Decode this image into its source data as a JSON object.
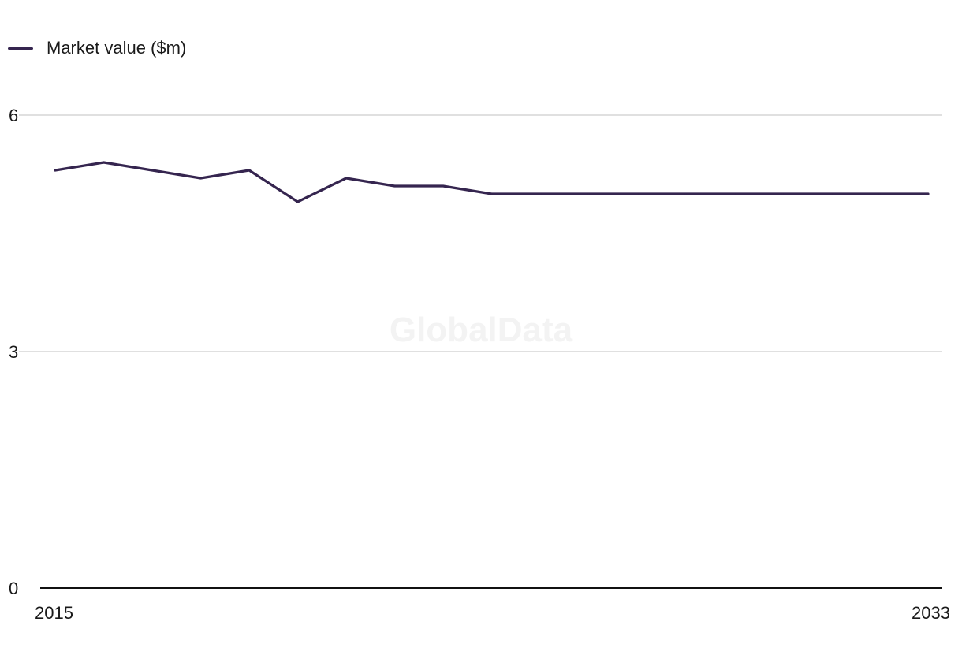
{
  "legend": {
    "label": "Market value ($m)"
  },
  "watermark": "GlobalData",
  "colors": {
    "series": "#35254f",
    "grid": "#d6d6d6",
    "axis": "#111111",
    "text": "#1a1a1a",
    "watermark": "#f3f3f3"
  },
  "chart_data": {
    "type": "line",
    "title": "",
    "xlabel": "",
    "ylabel": "",
    "x": [
      2015,
      2016,
      2017,
      2018,
      2019,
      2020,
      2021,
      2022,
      2023,
      2024,
      2025,
      2026,
      2027,
      2028,
      2029,
      2030,
      2031,
      2032,
      2033
    ],
    "series": [
      {
        "name": "Market value ($m)",
        "values": [
          5.3,
          5.4,
          5.3,
          5.2,
          5.3,
          4.9,
          5.2,
          5.1,
          5.1,
          5.0,
          5.0,
          5.0,
          5.0,
          5.0,
          5.0,
          5.0,
          5.0,
          5.0,
          5.0
        ]
      }
    ],
    "xlim": [
      2015,
      2033
    ],
    "ylim": [
      0,
      6
    ],
    "y_ticks": [
      0,
      3,
      6
    ],
    "y_tick_labels": [
      "0",
      "3",
      "6"
    ],
    "x_tick_labels": [
      "2015",
      "2033"
    ],
    "grid": true,
    "legend_position": "top-left"
  }
}
